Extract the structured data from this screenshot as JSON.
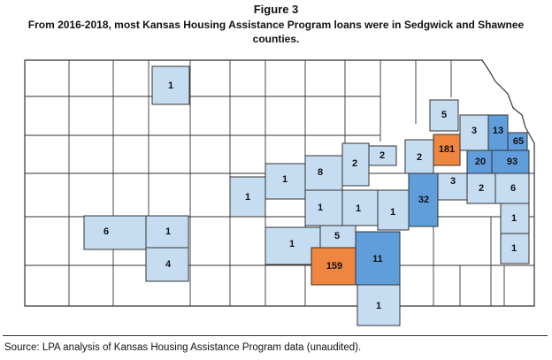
{
  "header": {
    "figure_label": "Figure 3",
    "title_line1": "From 2016-2018, most Kansas Housing Assistance Program loans were in Sedgwick and Shawnee",
    "title_line2": "counties."
  },
  "map": {
    "colors": {
      "none": "#ffffff",
      "low": "#c5dcf1",
      "mid": "#5f9ddb",
      "high": "#ee8640",
      "border": "#333333"
    },
    "counties": [
      {
        "id": "c-1-north",
        "value": "1",
        "level": "low"
      },
      {
        "id": "c-5",
        "value": "5",
        "level": "low"
      },
      {
        "id": "c-3",
        "value": "3",
        "level": "low"
      },
      {
        "id": "c-13",
        "value": "13",
        "level": "mid"
      },
      {
        "id": "c-65",
        "value": "65",
        "level": "mid"
      },
      {
        "id": "c-181",
        "value": "181",
        "level": "high"
      },
      {
        "id": "c-2a",
        "value": "2",
        "level": "low"
      },
      {
        "id": "c-2b",
        "value": "2",
        "level": "low"
      },
      {
        "id": "c-2c",
        "value": "2",
        "level": "low"
      },
      {
        "id": "c-20",
        "value": "20",
        "level": "mid"
      },
      {
        "id": "c-93",
        "value": "93",
        "level": "mid"
      },
      {
        "id": "c-1-west",
        "value": "1",
        "level": "low"
      },
      {
        "id": "c-1-center",
        "value": "1",
        "level": "low"
      },
      {
        "id": "c-8",
        "value": "8",
        "level": "low"
      },
      {
        "id": "c-3b",
        "value": "3",
        "level": "low"
      },
      {
        "id": "c-2d",
        "value": "2",
        "level": "low"
      },
      {
        "id": "c-6-east",
        "value": "6",
        "level": "low"
      },
      {
        "id": "c-32",
        "value": "32",
        "level": "mid"
      },
      {
        "id": "c-1-a",
        "value": "1",
        "level": "low"
      },
      {
        "id": "c-1-b",
        "value": "1",
        "level": "low"
      },
      {
        "id": "c-1-c",
        "value": "1",
        "level": "low"
      },
      {
        "id": "c-1-east",
        "value": "1",
        "level": "low"
      },
      {
        "id": "c-6-west",
        "value": "6",
        "level": "low"
      },
      {
        "id": "c-1-sw",
        "value": "1",
        "level": "low"
      },
      {
        "id": "c-1-sc",
        "value": "1",
        "level": "low"
      },
      {
        "id": "c-5b",
        "value": "5",
        "level": "low"
      },
      {
        "id": "c-1-se",
        "value": "1",
        "level": "low"
      },
      {
        "id": "c-4",
        "value": "4",
        "level": "low"
      },
      {
        "id": "c-159",
        "value": "159",
        "level": "high"
      },
      {
        "id": "c-11",
        "value": "11",
        "level": "mid"
      },
      {
        "id": "c-1-south",
        "value": "1",
        "level": "low"
      }
    ]
  },
  "source": "Source: LPA analysis of Kansas Housing Assistance Program data (unaudited)."
}
